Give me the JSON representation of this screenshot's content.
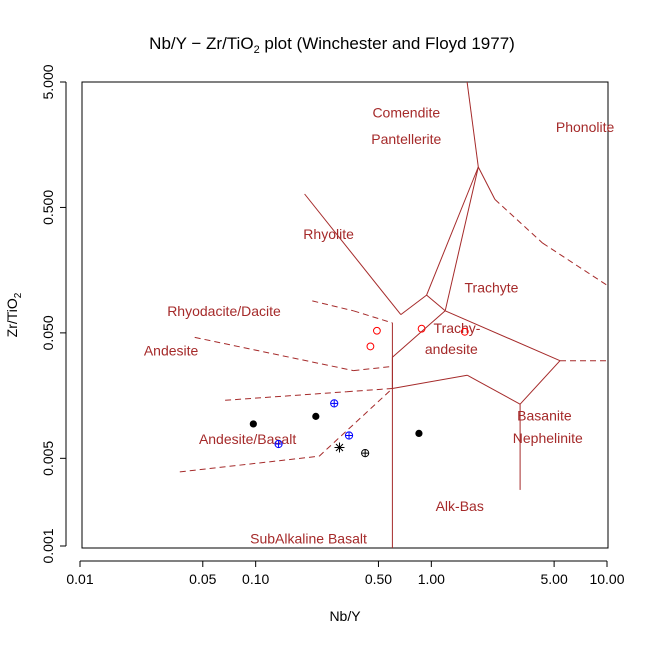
{
  "chart_data": {
    "type": "scatter",
    "title": "Nb/Y – Zr/TiO₂ plot (Winchester and Floyd 1977)",
    "title_main": "Nb/Y − Zr/TiO",
    "title_sub": "2",
    "title_tail": " plot (Winchester and Floyd 1977)",
    "xlabel": "Nb/Y",
    "ylabel": "Zr/TiO2",
    "ylabel_main": "Zr/TiO",
    "ylabel_sub": "2",
    "x_scale": "log",
    "y_scale": "log",
    "xlim": [
      0.01,
      10
    ],
    "ylim": [
      0.001,
      5
    ],
    "x_ticks": [
      {
        "value": 0.01,
        "label": "0.01"
      },
      {
        "value": 0.05,
        "label": "0.05"
      },
      {
        "value": 0.1,
        "label": "0.10"
      },
      {
        "value": 0.5,
        "label": "0.50"
      },
      {
        "value": 1,
        "label": "1.00"
      },
      {
        "value": 5,
        "label": "5.00"
      },
      {
        "value": 10,
        "label": "10.00"
      }
    ],
    "y_ticks": [
      {
        "value": 0.001,
        "label": "0.001"
      },
      {
        "value": 0.005,
        "label": "0.005"
      },
      {
        "value": 0.05,
        "label": "0.050"
      },
      {
        "value": 0.5,
        "label": "0.500"
      },
      {
        "value": 5,
        "label": "5.000"
      }
    ],
    "grid": false,
    "line_color": "#a52a2a",
    "regions": [
      {
        "label": "Comendite",
        "x": 0.72,
        "y": 2.6
      },
      {
        "label": "Pantellerite",
        "x": 0.72,
        "y": 1.6
      },
      {
        "label": "Phonolite",
        "x": 7.5,
        "y": 2.0
      },
      {
        "label": "Rhyolite",
        "x": 0.26,
        "y": 0.28
      },
      {
        "label": "Trachyte",
        "x": 2.2,
        "y": 0.105
      },
      {
        "label": "Rhyodacite/Dacite",
        "x": 0.066,
        "y": 0.068
      },
      {
        "label": "Andesite",
        "x": 0.033,
        "y": 0.033
      },
      {
        "label": "Trachy-",
        "x": 1.4,
        "y": 0.05
      },
      {
        "label": "andesite",
        "x": 1.3,
        "y": 0.034
      },
      {
        "label": "Andesite/Basalt",
        "x": 0.09,
        "y": 0.0065
      },
      {
        "label": "Basanite",
        "x": 4.4,
        "y": 0.01
      },
      {
        "label": "Nephelinite",
        "x": 4.6,
        "y": 0.0066
      },
      {
        "label": "Alk-Bas",
        "x": 1.45,
        "y": 0.0019
      },
      {
        "label": "SubAlkaline Basalt",
        "x": 0.2,
        "y": 0.00105
      }
    ],
    "boundaries": [
      {
        "style": "solid",
        "points": [
          [
            0.19,
            0.64
          ],
          [
            0.67,
            0.07
          ],
          [
            0.94,
            0.1
          ],
          [
            1.85,
            1.05
          ],
          [
            1.45,
            14.0
          ]
        ]
      },
      {
        "style": "solid",
        "points": [
          [
            0.94,
            0.1
          ],
          [
            1.2,
            0.075
          ],
          [
            1.85,
            1.05
          ]
        ]
      },
      {
        "style": "solid",
        "points": [
          [
            1.85,
            1.05
          ],
          [
            2.3,
            0.58
          ],
          [
            4.3,
            0.26
          ],
          [
            10,
            0.12
          ]
        ],
        "dash_from": 1
      },
      {
        "style": "solid",
        "points": [
          [
            0.6,
            0.06
          ],
          [
            0.6,
            0.0002
          ]
        ]
      },
      {
        "style": "solid",
        "points": [
          [
            0.6,
            0.018
          ],
          [
            0.6,
            0.032
          ],
          [
            1.2,
            0.075
          ],
          [
            5.4,
            0.03
          ],
          [
            3.2,
            0.0135
          ],
          [
            1.6,
            0.023
          ],
          [
            0.6,
            0.018
          ]
        ]
      },
      {
        "style": "solid",
        "points": [
          [
            3.2,
            0.0135
          ],
          [
            3.2,
            0.0028
          ]
        ]
      },
      {
        "style": "solid",
        "points": [
          [
            0.045,
            0.046
          ],
          [
            0.36,
            0.025
          ],
          [
            0.6,
            0.027
          ]
        ],
        "dash_to": 2
      },
      {
        "style": "dashed",
        "points": [
          [
            0.21,
            0.09
          ],
          [
            0.36,
            0.075
          ],
          [
            0.6,
            0.06
          ]
        ]
      },
      {
        "style": "dashed",
        "points": [
          [
            5.4,
            0.03
          ],
          [
            10,
            0.03
          ]
        ]
      },
      {
        "style": "dashed",
        "points": [
          [
            0.067,
            0.0145
          ],
          [
            0.33,
            0.017
          ],
          [
            0.6,
            0.018
          ]
        ]
      },
      {
        "style": "dashed",
        "points": [
          [
            0.037,
            0.0039
          ],
          [
            0.23,
            0.0052
          ],
          [
            0.6,
            0.018
          ]
        ]
      }
    ],
    "series": [
      {
        "marker": "filled-circle",
        "color": "#000000",
        "points": [
          [
            0.097,
            0.0094
          ],
          [
            0.22,
            0.0108
          ],
          [
            0.85,
            0.0079
          ]
        ]
      },
      {
        "marker": "open-circle",
        "color": "#ff0000",
        "points": [
          [
            0.45,
            0.039
          ],
          [
            0.49,
            0.052
          ],
          [
            0.88,
            0.054
          ],
          [
            1.55,
            0.051
          ]
        ]
      },
      {
        "marker": "circle-plus",
        "color": "#0000ff",
        "points": [
          [
            0.135,
            0.0065
          ],
          [
            0.28,
            0.0137
          ],
          [
            0.34,
            0.0076
          ]
        ]
      },
      {
        "marker": "circle-plus",
        "color": "#000000",
        "points": [
          [
            0.42,
            0.0055
          ]
        ]
      },
      {
        "marker": "asterisk",
        "color": "#000000",
        "points": [
          [
            0.3,
            0.0061
          ]
        ]
      }
    ]
  }
}
